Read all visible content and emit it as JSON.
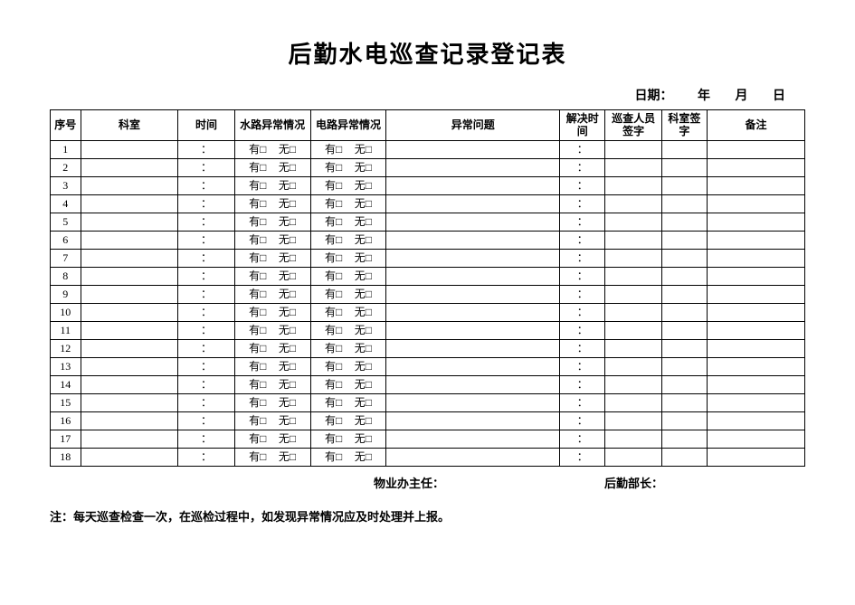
{
  "title": "后勤水电巡查记录登记表",
  "date": {
    "label": "日期：",
    "year": "年",
    "month": "月",
    "day": "日"
  },
  "headers": {
    "seq": "序号",
    "dept": "科室",
    "time": "时间",
    "water": "水路异常情况",
    "elec": "电路异常情况",
    "issue": "异常问题",
    "solve": "解决时间",
    "inspector": "巡查人员签字",
    "deptSign": "科室签字",
    "remark": "备注"
  },
  "cell": {
    "yes": "有□",
    "no": "无□",
    "colon": "："
  },
  "rowCount": 18,
  "signatures": {
    "owner": "物业办主任：",
    "logistics": "后勤部长："
  },
  "note": "注：每天巡查检查一次，在巡检过程中，如发现异常情况应及时处理并上报。"
}
